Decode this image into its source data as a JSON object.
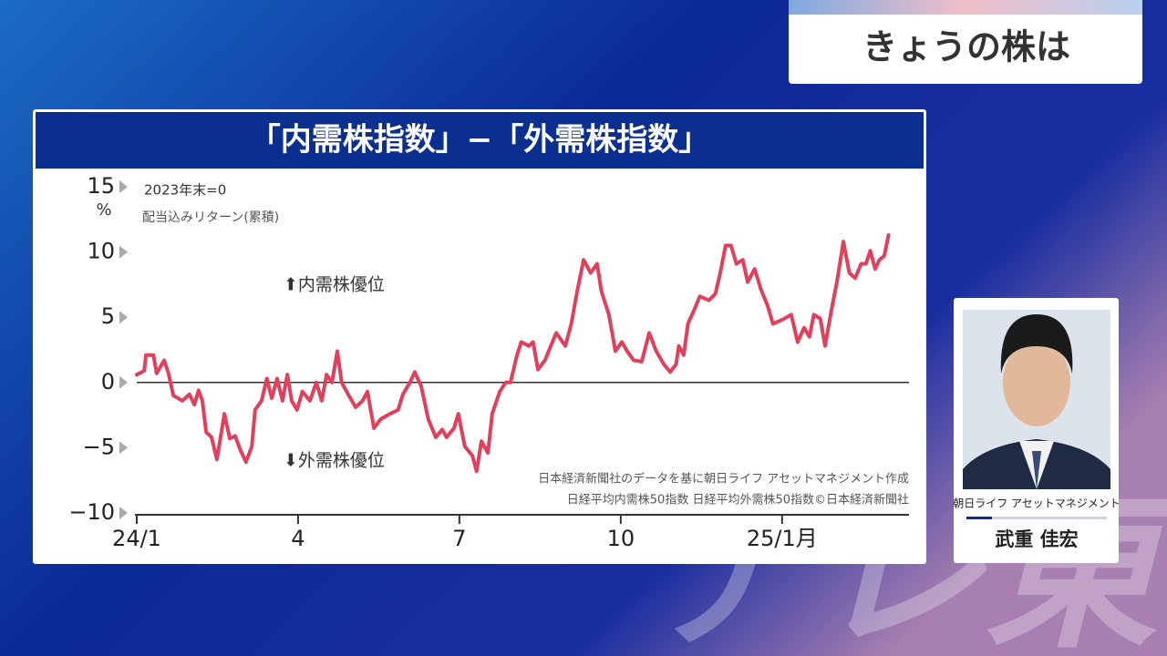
{
  "banner": "きょうの株は",
  "watermark": "テレ東",
  "guest": {
    "company": "朝日ライフ アセットマネジメント",
    "name": "武重 佳宏"
  },
  "chart_data": {
    "type": "line",
    "title": "「内需株指数」−「外需株指数」",
    "y_unit": "%",
    "annotations": [
      "2023年末=0",
      "配当込みリターン(累積)",
      "⬆内需株優位",
      "⬇外需株優位"
    ],
    "source": [
      "日本経済新聞社のデータを基に朝日ライフ アセットマネジメント作成",
      "日経平均内需株50指数 日経平均外需株50指数©日本経済新聞社"
    ],
    "x": [
      0,
      0.14,
      0.17,
      0.31,
      0.37,
      0.51,
      0.59,
      0.68,
      0.85,
      0.98,
      1.07,
      1.15,
      1.22,
      1.29,
      1.39,
      1.49,
      1.63,
      1.73,
      1.83,
      1.93,
      2.03,
      2.14,
      2.2,
      2.32,
      2.42,
      2.51,
      2.61,
      2.71,
      2.8,
      2.88,
      2.98,
      3.08,
      3.22,
      3.34,
      3.44,
      3.53,
      3.63,
      3.73,
      3.81,
      3.93,
      4.07,
      4.2,
      4.29,
      4.41,
      4.54,
      4.71,
      4.86,
      4.95,
      5.08,
      5.17,
      5.29,
      5.42,
      5.56,
      5.68,
      5.76,
      5.9,
      5.98,
      6.1,
      6.24,
      6.32,
      6.41,
      6.53,
      6.61,
      6.75,
      6.86,
      6.95,
      7.07,
      7.15,
      7.29,
      7.37,
      7.46,
      7.59,
      7.8,
      7.97,
      8.08,
      8.19,
      8.31,
      8.44,
      8.56,
      8.64,
      8.78,
      8.9,
      9.02,
      9.12,
      9.24,
      9.39,
      9.53,
      9.66,
      9.8,
      9.92,
      10.03,
      10.08,
      10.17,
      10.25,
      10.37,
      10.47,
      10.64,
      10.76,
      10.85,
      10.95,
      11.05,
      11.15,
      11.27,
      11.36,
      11.49,
      11.61,
      11.73,
      11.83,
      12,
      12.17,
      12.29,
      12.41,
      12.51,
      12.59,
      12.71,
      12.8,
      12.92,
      13.02,
      13.14,
      13.25,
      13.36,
      13.47,
      13.56,
      13.64,
      13.73,
      13.81,
      13.9,
      13.98
    ],
    "series": [
      {
        "color": "#e0405c",
        "values": [
          0.6,
          0.9,
          2.1,
          2.1,
          0.7,
          1.7,
          0.7,
          -1.0,
          -1.4,
          -0.9,
          -1.7,
          -0.6,
          -1.4,
          -3.8,
          -4.2,
          -5.9,
          -2.4,
          -4.3,
          -4.1,
          -5.2,
          -6.1,
          -4.9,
          -2.1,
          -1.4,
          0.3,
          -1.2,
          0.3,
          -1.4,
          0.6,
          -1.4,
          -2.1,
          -0.7,
          -1.4,
          0,
          -1.4,
          0.6,
          0,
          2.4,
          0,
          -0.9,
          -1.9,
          -1.4,
          -0.7,
          -3.5,
          -2.8,
          -2.4,
          -2.1,
          -0.9,
          0,
          0.8,
          -0.3,
          -2.8,
          -4.2,
          -3.6,
          -4.2,
          -3.5,
          -2.4,
          -4.9,
          -5.6,
          -6.8,
          -4.5,
          -5.4,
          -2.4,
          -0.7,
          0,
          0,
          2.1,
          3.1,
          2.8,
          3.1,
          1.0,
          1.7,
          3.8,
          2.8,
          4.5,
          7.0,
          9.4,
          8.4,
          9.1,
          7.0,
          5.2,
          2.4,
          3.1,
          2.4,
          1.7,
          1.6,
          3.8,
          2.4,
          1.4,
          0.8,
          1.4,
          2.8,
          2.1,
          4.5,
          5.6,
          6.6,
          6.3,
          6.8,
          8.4,
          10.5,
          10.5,
          9.1,
          9.4,
          7.7,
          8.7,
          7.1,
          5.9,
          4.5,
          4.8,
          5.2,
          3.1,
          4.2,
          3.5,
          5.2,
          4.9,
          2.8,
          5.6,
          7.7,
          10.8,
          8.4,
          8.0,
          9.1,
          9.1,
          10.1,
          8.7,
          9.4,
          9.7,
          11.3
        ]
      }
    ],
    "xlim": [
      0,
      14.36
    ],
    "xticks": [
      {
        "value": 0,
        "label": "24/1"
      },
      {
        "value": 3,
        "label": "4"
      },
      {
        "value": 6,
        "label": "7"
      },
      {
        "value": 9,
        "label": "10"
      },
      {
        "value": 12,
        "label": "25/1月"
      }
    ],
    "ylim": [
      -10,
      15
    ],
    "yticks": [
      {
        "value": -10,
        "label": "−10"
      },
      {
        "value": -5,
        "label": "−5"
      },
      0,
      5,
      10,
      15
    ],
    "zero_line": true
  }
}
